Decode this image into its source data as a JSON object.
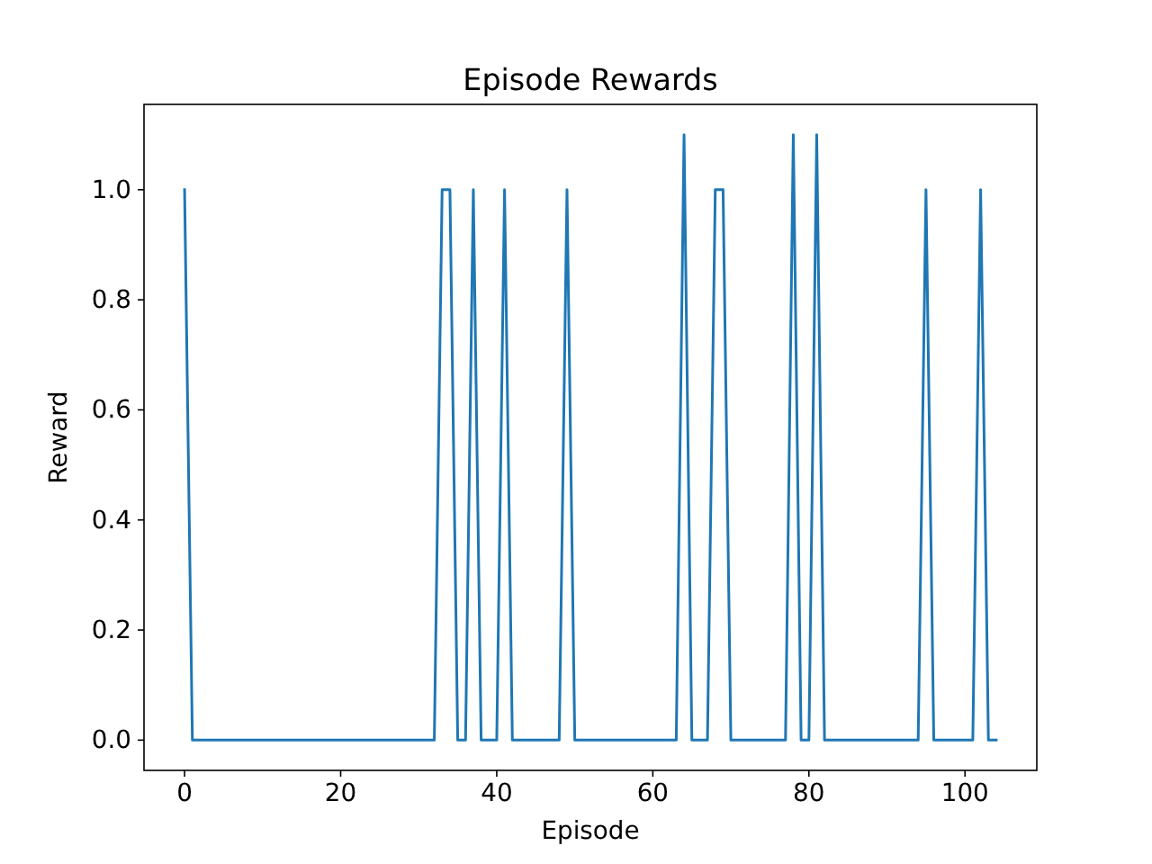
{
  "chart_data": {
    "type": "line",
    "title": "Episode Rewards",
    "xlabel": "Episode",
    "ylabel": "Reward",
    "x": [
      0,
      1,
      2,
      3,
      4,
      5,
      6,
      7,
      8,
      9,
      10,
      11,
      12,
      13,
      14,
      15,
      16,
      17,
      18,
      19,
      20,
      21,
      22,
      23,
      24,
      25,
      26,
      27,
      28,
      29,
      30,
      31,
      32,
      33,
      34,
      35,
      36,
      37,
      38,
      39,
      40,
      41,
      42,
      43,
      44,
      45,
      46,
      47,
      48,
      49,
      50,
      51,
      52,
      53,
      54,
      55,
      56,
      57,
      58,
      59,
      60,
      61,
      62,
      63,
      64,
      65,
      66,
      67,
      68,
      69,
      70,
      71,
      72,
      73,
      74,
      75,
      76,
      77,
      78,
      79,
      80,
      81,
      82,
      83,
      84,
      85,
      86,
      87,
      88,
      89,
      90,
      91,
      92,
      93,
      94,
      95,
      96,
      97,
      98,
      99,
      100,
      101,
      102,
      103,
      104
    ],
    "series": [
      {
        "color": "#1f77b4",
        "values": [
          1,
          0,
          0,
          0,
          0,
          0,
          0,
          0,
          0,
          0,
          0,
          0,
          0,
          0,
          0,
          0,
          0,
          0,
          0,
          0,
          0,
          0,
          0,
          0,
          0,
          0,
          0,
          0,
          0,
          0,
          0,
          0,
          0,
          1,
          1,
          0,
          0,
          1,
          0,
          0,
          0,
          1,
          0,
          0,
          0,
          0,
          0,
          0,
          0,
          1,
          0,
          0,
          0,
          0,
          0,
          0,
          0,
          0,
          0,
          0,
          0,
          0,
          0,
          0,
          1.1,
          0,
          0,
          0,
          1,
          1,
          0,
          0,
          0,
          0,
          0,
          0,
          0,
          0,
          1.1,
          0,
          0,
          1.1,
          0,
          0,
          0,
          0,
          0,
          0,
          0,
          0,
          0,
          0,
          0,
          0,
          0,
          1,
          0,
          0,
          0,
          0,
          0,
          0,
          1,
          0,
          0
        ]
      }
    ],
    "xlim": [
      -5.2,
      109.2
    ],
    "xticks": [
      0,
      20,
      40,
      60,
      80,
      100
    ],
    "ylim": [
      -0.055,
      1.155
    ],
    "yticks": [
      {
        "value": 0,
        "label": "0.0"
      },
      {
        "value": 0.2,
        "label": "0.2"
      },
      {
        "value": 0.4,
        "label": "0.4"
      },
      {
        "value": 0.6,
        "label": "0.6"
      },
      {
        "value": 0.8,
        "label": "0.8"
      },
      {
        "value": 1.0,
        "label": "1.0"
      }
    ],
    "grid": false
  }
}
